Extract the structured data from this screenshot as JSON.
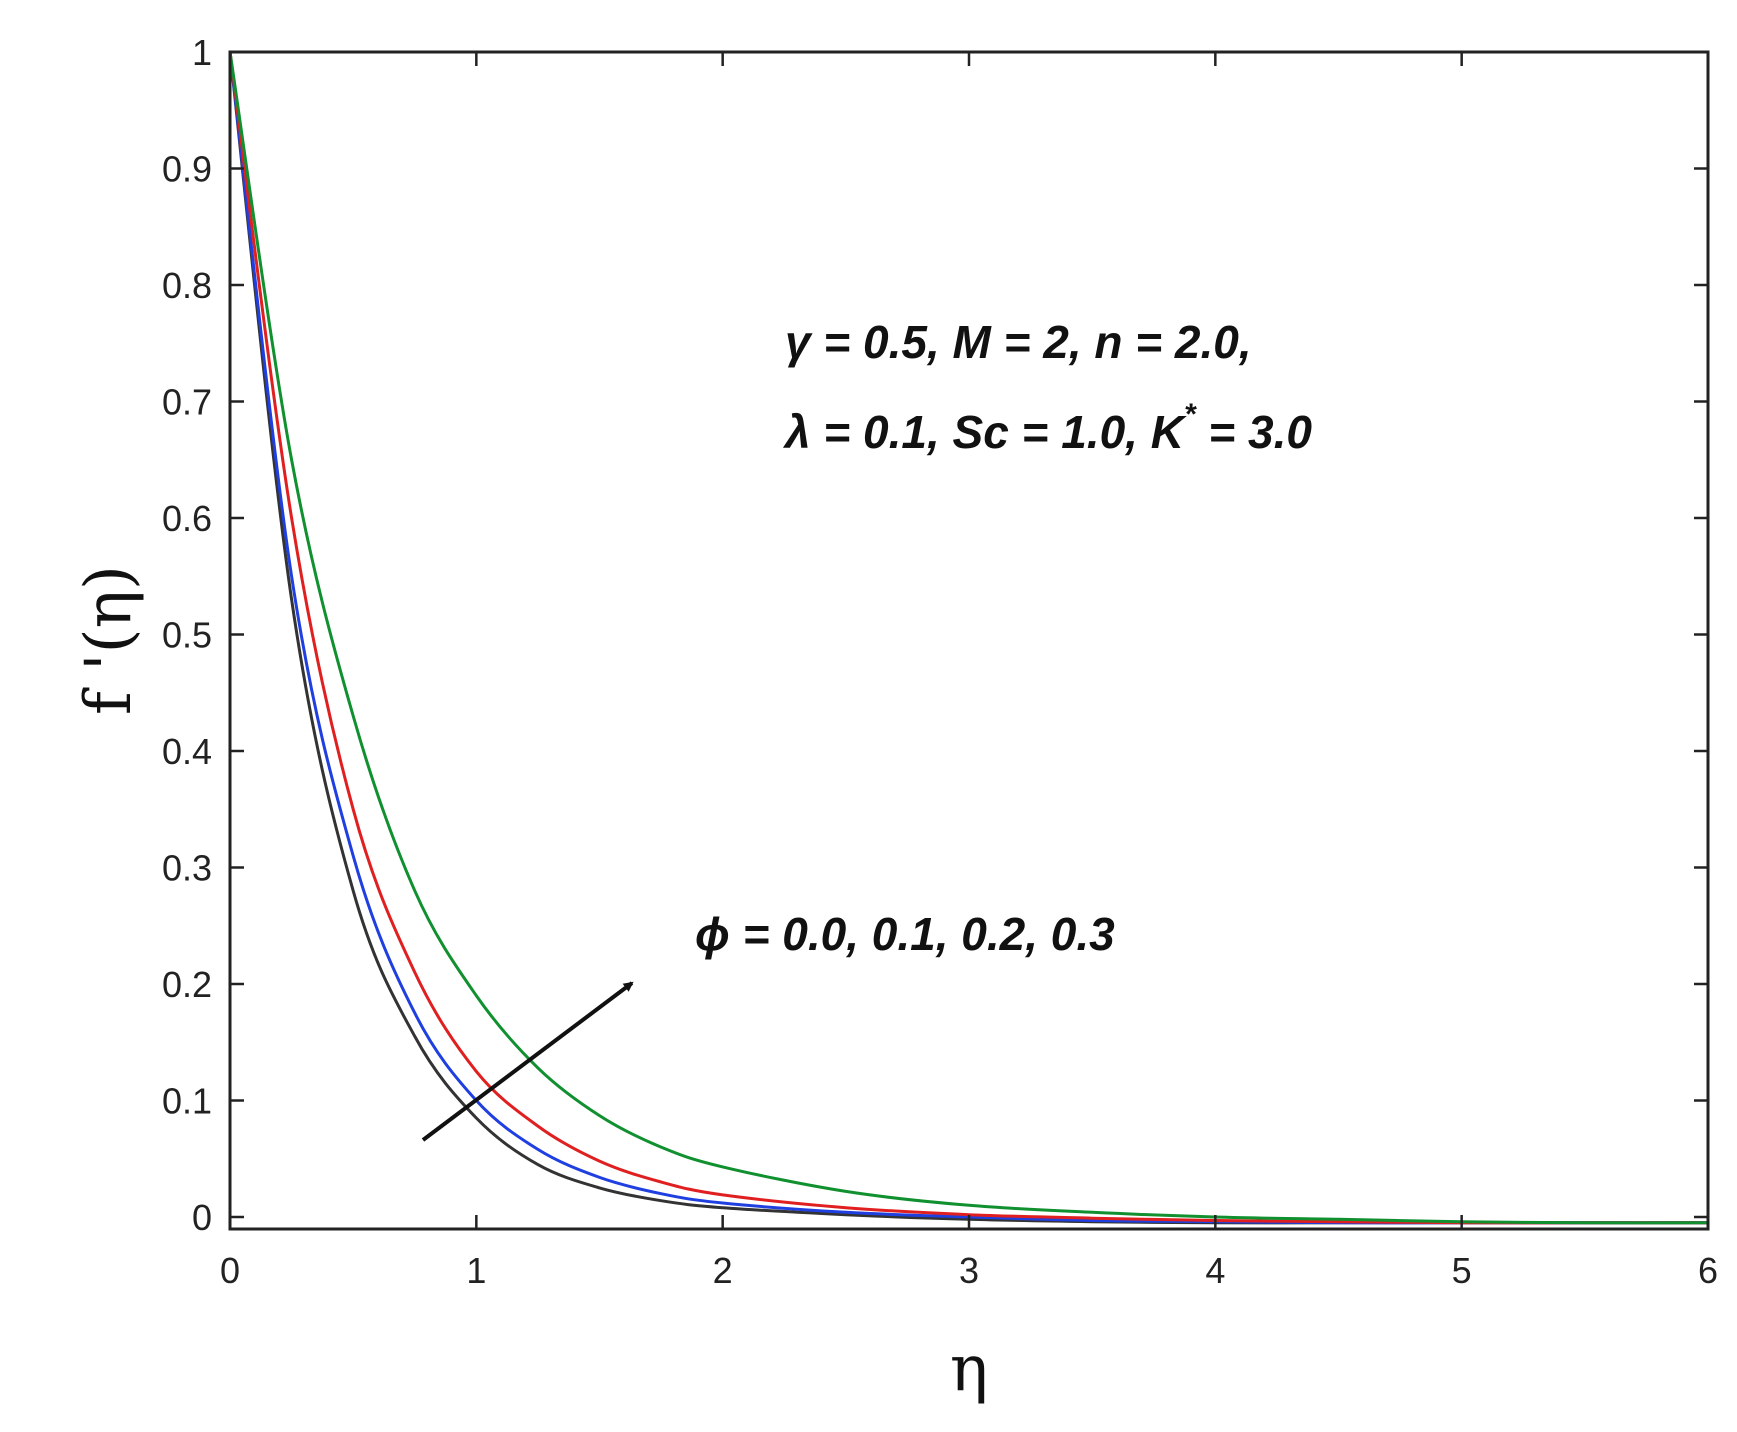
{
  "chart_data": {
    "type": "line",
    "xlabel": "η",
    "ylabel": "f '(η)",
    "xlim": [
      0,
      6
    ],
    "ylim": [
      -0.01,
      1
    ],
    "x_ticks": [
      "0",
      "1",
      "2",
      "3",
      "4",
      "5",
      "6"
    ],
    "y_ticks": [
      "0",
      "0.1",
      "0.2",
      "0.3",
      "0.4",
      "0.5",
      "0.6",
      "0.7",
      "0.8",
      "0.9",
      "1"
    ],
    "grid": false,
    "x": [
      0,
      0.25,
      0.5,
      0.75,
      1.0,
      1.25,
      1.5,
      1.75,
      2.0,
      2.5,
      3.0,
      3.5,
      4.0,
      4.5,
      5.0,
      5.5,
      6.0
    ],
    "series": [
      {
        "color": "#333333",
        "values": [
          1.0,
          0.53,
          0.28,
          0.155,
          0.085,
          0.045,
          0.025,
          0.014,
          0.008,
          0.002,
          -0.002,
          -0.004,
          -0.005,
          -0.005,
          -0.005,
          -0.005,
          -0.005
        ]
      },
      {
        "color": "#1f3fe0",
        "values": [
          1.0,
          0.55,
          0.31,
          0.175,
          0.1,
          0.058,
          0.034,
          0.02,
          0.012,
          0.004,
          0.0,
          -0.003,
          -0.004,
          -0.005,
          -0.005,
          -0.005,
          -0.005
        ]
      },
      {
        "color": "#e02020",
        "values": [
          1.0,
          0.6,
          0.35,
          0.21,
          0.125,
          0.078,
          0.048,
          0.03,
          0.019,
          0.008,
          0.002,
          -0.001,
          -0.003,
          -0.004,
          -0.005,
          -0.005,
          -0.005
        ]
      },
      {
        "color": "#119030",
        "values": [
          1.0,
          0.65,
          0.43,
          0.28,
          0.19,
          0.128,
          0.087,
          0.06,
          0.043,
          0.022,
          0.01,
          0.004,
          0.0,
          -0.002,
          -0.004,
          -0.005,
          -0.005
        ]
      }
    ],
    "annotations": {
      "params_line1": "γ = 0.5,  M = 2,  n = 2.0,",
      "params_line2_a": "λ = 0.1,  Sc = 1.0,  K",
      "params_line2_sup": "*",
      "params_line2_b": " = 3.0",
      "arrow_label": "ϕ = 0.0, 0.1, 0.2, 0.3"
    }
  }
}
